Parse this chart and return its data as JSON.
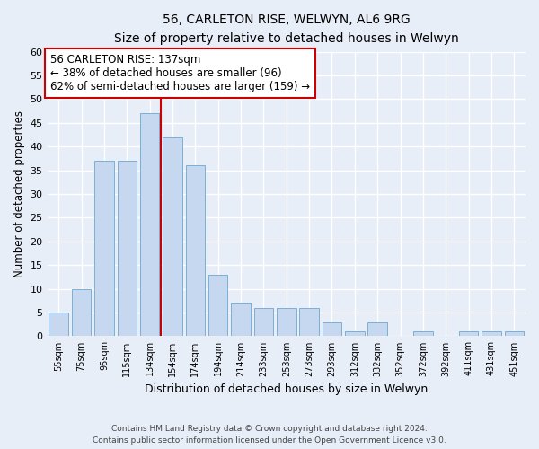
{
  "title1": "56, CARLETON RISE, WELWYN, AL6 9RG",
  "title2": "Size of property relative to detached houses in Welwyn",
  "xlabel": "Distribution of detached houses by size in Welwyn",
  "ylabel": "Number of detached properties",
  "categories": [
    "55sqm",
    "75sqm",
    "95sqm",
    "115sqm",
    "134sqm",
    "154sqm",
    "174sqm",
    "194sqm",
    "214sqm",
    "233sqm",
    "253sqm",
    "273sqm",
    "293sqm",
    "312sqm",
    "332sqm",
    "352sqm",
    "372sqm",
    "392sqm",
    "411sqm",
    "431sqm",
    "451sqm"
  ],
  "values": [
    5,
    10,
    37,
    37,
    47,
    42,
    36,
    13,
    7,
    6,
    6,
    6,
    3,
    1,
    3,
    0,
    1,
    0,
    1,
    1,
    1
  ],
  "bar_color": "#c5d8f0",
  "bar_edge_color": "#7aafd4",
  "bar_width": 0.85,
  "ylim": [
    0,
    60
  ],
  "yticks": [
    0,
    5,
    10,
    15,
    20,
    25,
    30,
    35,
    40,
    45,
    50,
    55,
    60
  ],
  "property_label": "56 CARLETON RISE: 137sqm",
  "arrow_text1": "← 38% of detached houses are smaller (96)",
  "arrow_text2": "62% of semi-detached houses are larger (159) →",
  "vline_position": 4.5,
  "vline_color": "#cc0000",
  "annotation_box_color": "#ffffff",
  "annotation_box_edge": "#cc0000",
  "background_color": "#e8eef8",
  "grid_color": "#ffffff",
  "footer1": "Contains HM Land Registry data © Crown copyright and database right 2024.",
  "footer2": "Contains public sector information licensed under the Open Government Licence v3.0."
}
